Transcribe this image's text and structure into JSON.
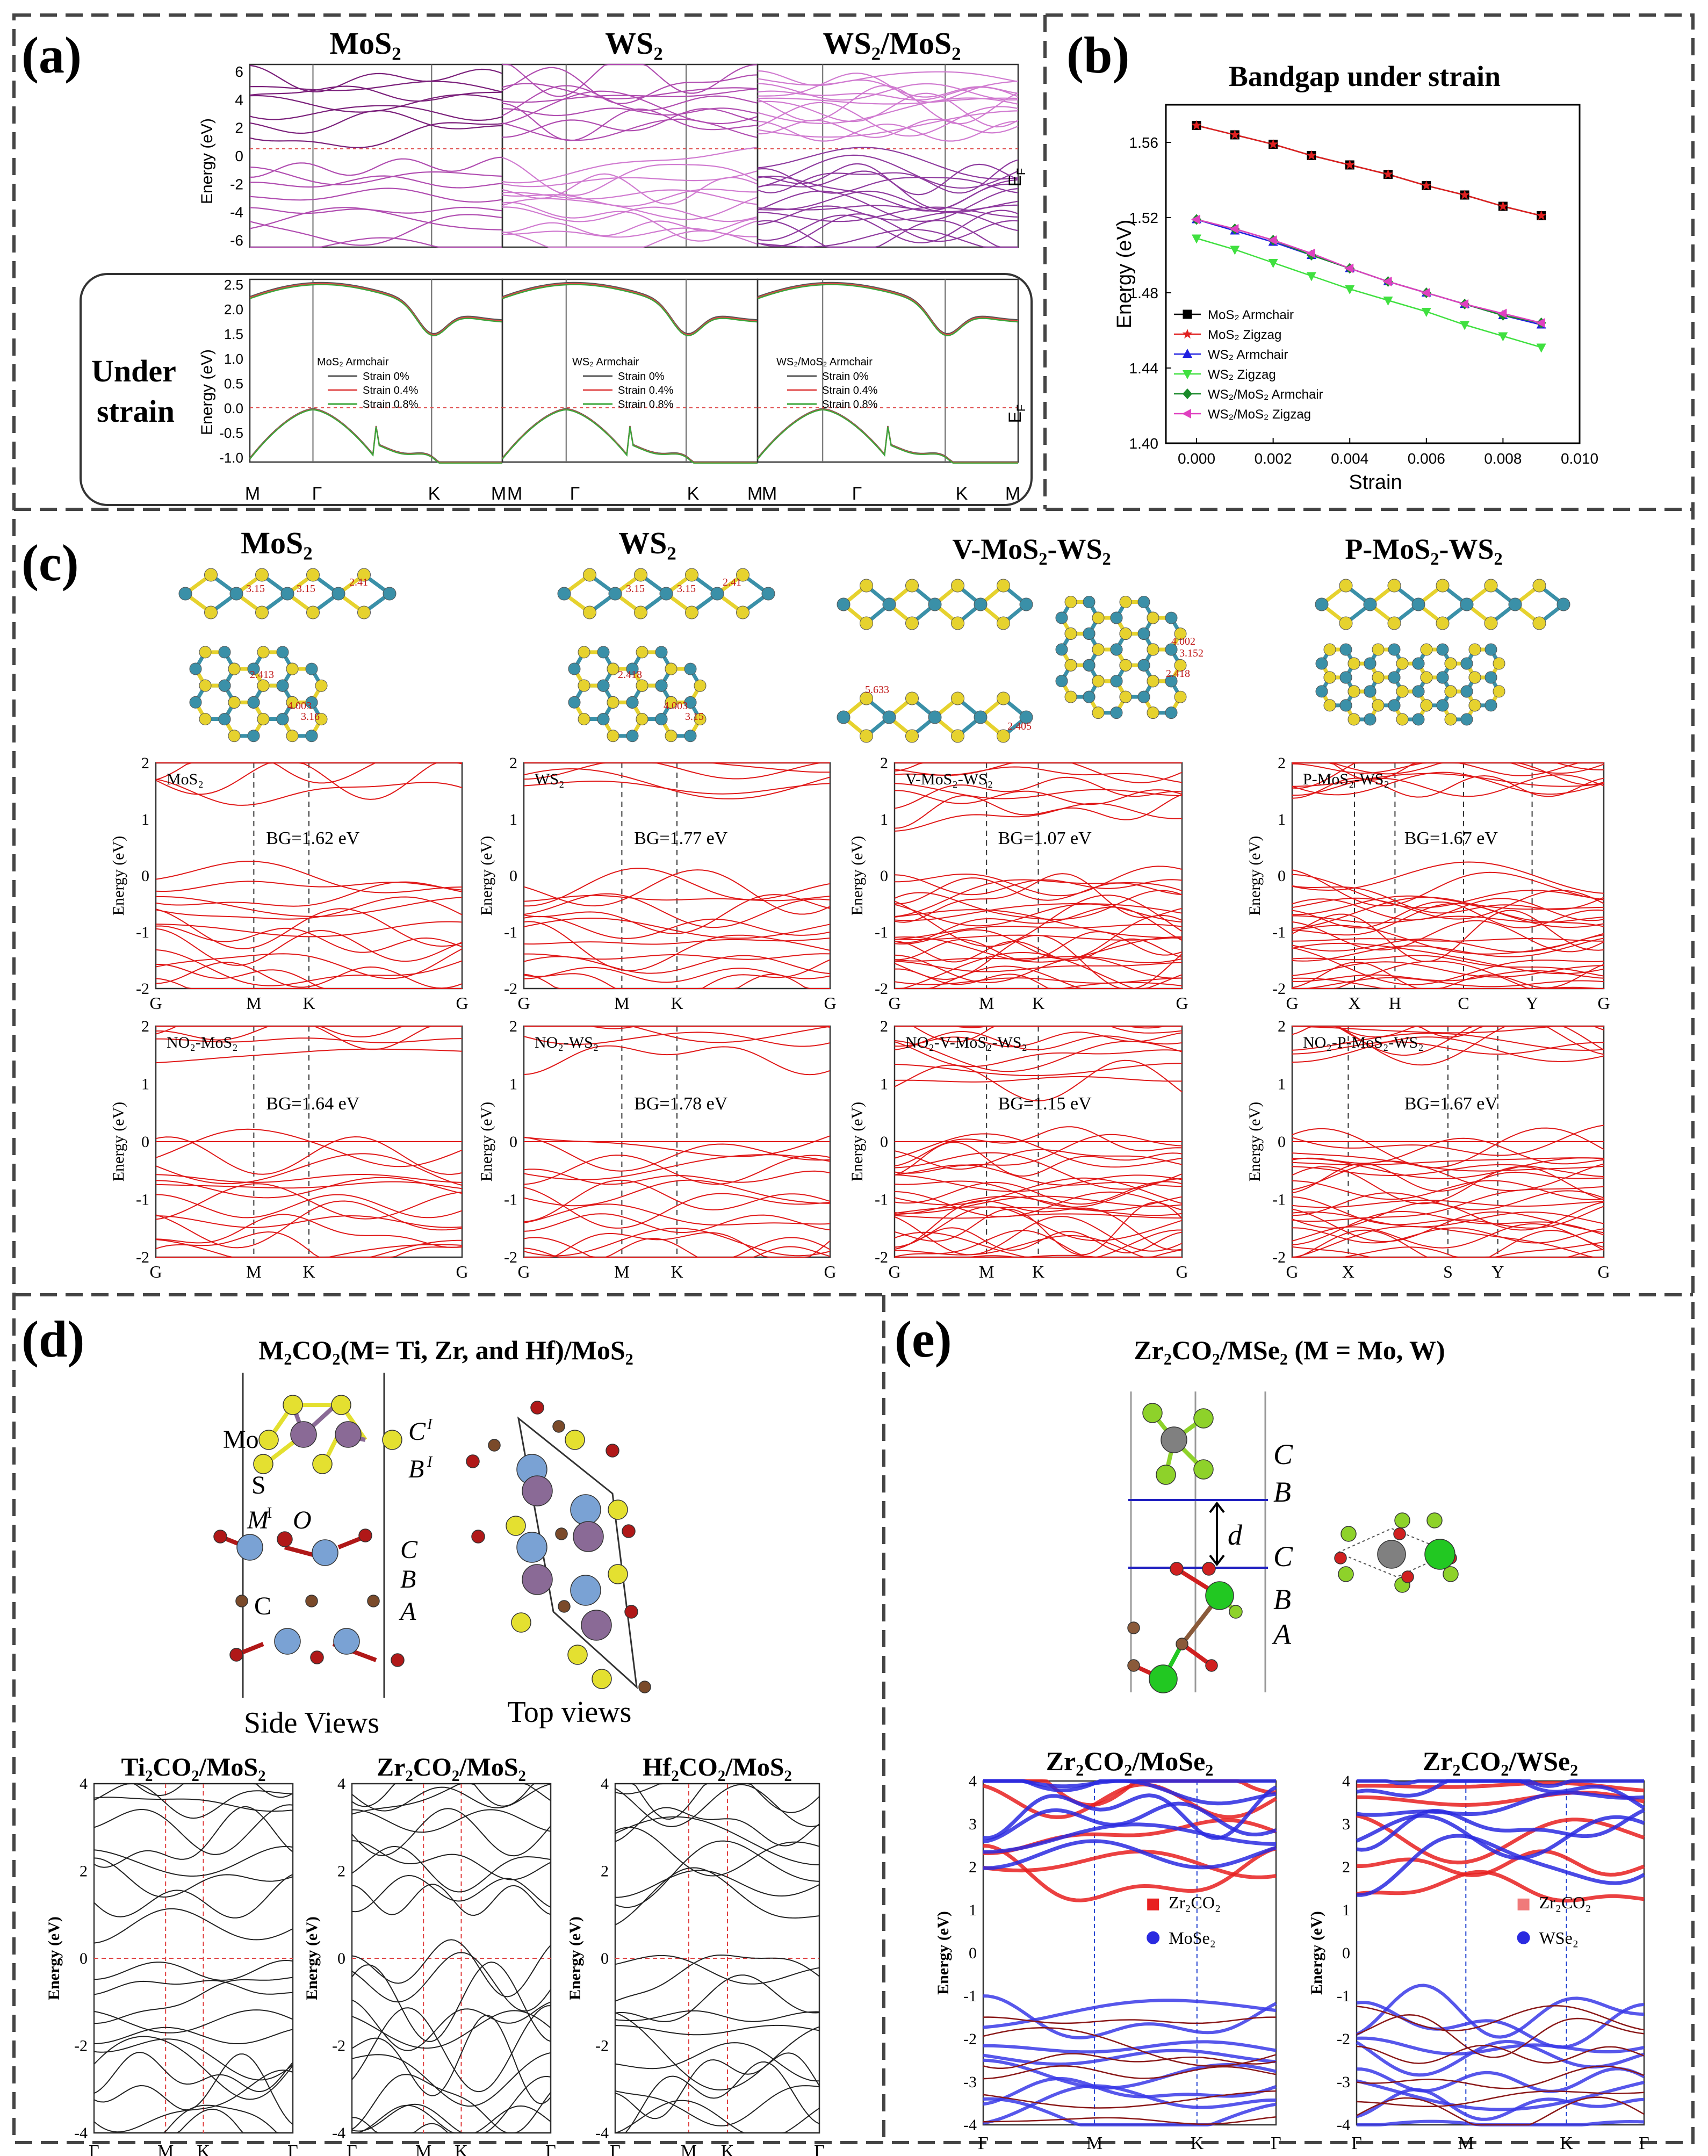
{
  "panel_a": {
    "label": "(a)",
    "titles": [
      "MoS₂",
      "WS₂",
      "WS₂/MoS₂"
    ],
    "ylabel": "Energy (eV)",
    "ef": "E",
    "ef_sub": "F",
    "under_strain": [
      "Under",
      "strain"
    ],
    "yticks_top": [
      "6",
      "4",
      "2",
      "0",
      "-2",
      "-4",
      "-6"
    ],
    "yticks_bottom": [
      "2.5",
      "2.0",
      "1.5",
      "1.0",
      "0.5",
      "0.0",
      "-0.5",
      "-1.0"
    ],
    "kpath_1": [
      "M",
      "Γ",
      "K",
      "M"
    ],
    "kpath_2": [
      "M",
      "Γ",
      "K",
      "M"
    ],
    "kpath_3": [
      "M",
      "Γ",
      "K",
      "M"
    ],
    "legend_titles": [
      "MoS₂ Armchair",
      "WS₂ Armchair",
      "WS₂/MoS₂ Armchair"
    ],
    "legend_items": [
      "Strain 0%",
      "Strain 0.4%",
      "Strain 0.8%"
    ],
    "legend_colors": [
      "#555555",
      "#e04848",
      "#3aa53a"
    ]
  },
  "panel_b": {
    "label": "(b)",
    "chart_data": {
      "type": "line",
      "title": "Bandgap under strain",
      "xlabel": "Strain",
      "ylabel": "Energy (eV)",
      "xlim": [
        -0.0008,
        0.01
      ],
      "ylim": [
        1.4,
        1.58
      ],
      "xticks": [
        "0.000",
        "0.002",
        "0.004",
        "0.006",
        "0.008",
        "0.010"
      ],
      "yticks": [
        "1.40",
        "1.44",
        "1.48",
        "1.52",
        "1.56"
      ],
      "x": [
        0.0,
        0.001,
        0.002,
        0.003,
        0.004,
        0.005,
        0.006,
        0.007,
        0.008,
        0.009
      ],
      "series": [
        {
          "name": "MoS₂ Armchair",
          "color": "#000000",
          "marker": "square",
          "values": [
            1.569,
            1.564,
            1.559,
            1.553,
            1.548,
            1.543,
            1.537,
            1.532,
            1.526,
            1.521
          ]
        },
        {
          "name": "MoS₂ Zigzag",
          "color": "#e02020",
          "marker": "star",
          "values": [
            1.569,
            1.564,
            1.559,
            1.553,
            1.548,
            1.543,
            1.537,
            1.532,
            1.526,
            1.521
          ]
        },
        {
          "name": "WS₂ Armchair",
          "color": "#2020e0",
          "marker": "triangle",
          "values": [
            1.519,
            1.513,
            1.507,
            1.5,
            1.493,
            1.486,
            1.48,
            1.474,
            1.468,
            1.463
          ]
        },
        {
          "name": "WS₂ Zigzag",
          "color": "#40e040",
          "marker": "triangle-down",
          "values": [
            1.509,
            1.503,
            1.496,
            1.489,
            1.482,
            1.476,
            1.47,
            1.463,
            1.457,
            1.451
          ]
        },
        {
          "name": "WS₂/MoS₂ Armchair",
          "color": "#1a8a2a",
          "marker": "diamond",
          "values": [
            1.519,
            1.514,
            1.508,
            1.5,
            1.493,
            1.486,
            1.48,
            1.474,
            1.468,
            1.464
          ]
        },
        {
          "name": "WS₂/MoS₂ Zigzag",
          "color": "#e040c0",
          "marker": "triangle-left",
          "values": [
            1.519,
            1.514,
            1.508,
            1.501,
            1.493,
            1.486,
            1.48,
            1.474,
            1.469,
            1.464
          ]
        }
      ]
    }
  },
  "panel_c": {
    "label": "(c)",
    "titles": [
      "MoS₂",
      "WS₂",
      "V-MoS₂-WS₂",
      "P-MoS₂-WS₂"
    ],
    "ylabel": "Energy (eV)",
    "yticks": [
      "2",
      "1",
      "0",
      "-1",
      "-2"
    ],
    "kpath_hex": [
      "G",
      "M",
      "K",
      "G"
    ],
    "kpath_rect_top": [
      "G",
      "X",
      "H",
      "C",
      "Y",
      "G"
    ],
    "kpath_rect_bottom": [
      "G",
      "X",
      "S",
      "Y",
      "G"
    ],
    "top_labels": [
      "MoS₂",
      "WS₂",
      "V-MoS₂-WS₂",
      "P-MoS₂-WS₂"
    ],
    "bottom_labels": [
      "NO₂-MoS₂",
      "NO₂-WS₂",
      "NO₂-V-MoS₂-WS₂",
      "NO₂-P-MoS₂-WS₂"
    ],
    "bg_top": [
      "BG=1.62 eV",
      "BG=1.77 eV",
      "BG=1.07 eV",
      "BG=1.67 eV"
    ],
    "bg_bottom": [
      "BG=1.64 eV",
      "BG=1.78 eV",
      "BG=1.15 eV",
      "BG=1.67 eV"
    ],
    "bond_labels": [
      "3.15",
      "3.15",
      "2.41",
      "2.413",
      "4.003",
      "3.16",
      "3.15",
      "3.15",
      "2.41",
      "2.418",
      "4.003",
      "3.15",
      "5.633",
      "2.405",
      "4.002",
      "3.152",
      "2.418"
    ]
  },
  "panel_d": {
    "label": "(d)",
    "title": "M₂CO₂(M= Ti, Zr, and Hf)/MoS₂",
    "atoms": {
      "mo": "Mo",
      "s": "S",
      "m": "M",
      "m_sup": "I",
      "o": "O",
      "c": "C"
    },
    "stack_left": {
      "c1": "C",
      "c1_sup": "I",
      "b1": "B",
      "b1_sup": "I",
      "c": "C",
      "b": "B",
      "a": "A"
    },
    "side_views": "Side Views",
    "top_views": "Top views",
    "plots": [
      "Ti₂CO₂/MoS₂",
      "Zr₂CO₂/MoS₂",
      "Hf₂CO₂/MoS₂"
    ],
    "ylabel": "Energy (eV)",
    "yticks": [
      "4",
      "2",
      "0",
      "-2",
      "-4"
    ],
    "kpath": [
      "Γ",
      "M",
      "K",
      "Γ"
    ]
  },
  "panel_e": {
    "label": "(e)",
    "title": "Zr₂CO₂/MSe₂ (M = Mo, W)",
    "stack": [
      "C",
      "B",
      "C",
      "B",
      "A"
    ],
    "d_label": "d",
    "plots": [
      "Zr₂CO₂/MoSe₂",
      "Zr₂CO₂/WSe₂"
    ],
    "ylabel": "Energy (eV)",
    "yticks": [
      "4",
      "3",
      "2",
      "1",
      "0",
      "-1",
      "-2",
      "-3",
      "-4"
    ],
    "kpath": [
      "Γ",
      "M",
      "K",
      "Γ"
    ],
    "legend_1": [
      "Zr₂CO₂",
      "MoSe₂"
    ],
    "legend_2": [
      "Zr₂CO₂",
      "WSe₂"
    ]
  }
}
